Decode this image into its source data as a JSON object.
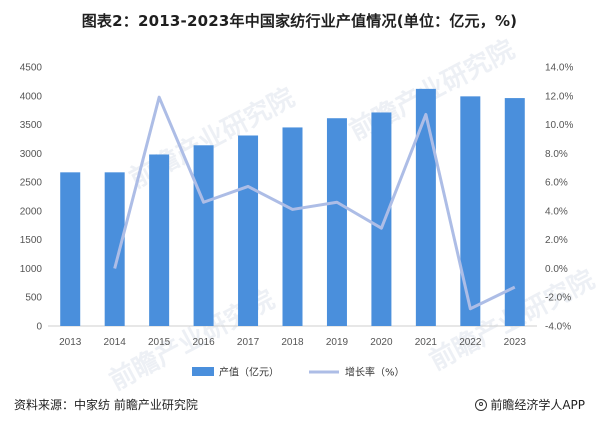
{
  "title": "图表2：2013-2023年中国家纺行业产值情况(单位：亿元，%)",
  "footer": {
    "source": "资料来源：中家纺 前瞻产业研究院",
    "brand": "前瞻经济学人APP"
  },
  "watermark": "前瞻产业研究院",
  "colors": {
    "bar": "#4a8fdc",
    "line": "#adbde6"
  },
  "chart_data": {
    "type": "bar",
    "categories": [
      "2013",
      "2014",
      "2015",
      "2016",
      "2017",
      "2018",
      "2019",
      "2020",
      "2021",
      "2022",
      "2023"
    ],
    "series": [
      {
        "name": "产值（亿元）",
        "type": "bar",
        "axis": "left",
        "values": [
          2670,
          2670,
          2980,
          3140,
          3310,
          3450,
          3610,
          3710,
          4120,
          3990,
          3960
        ]
      },
      {
        "name": "增长率（%）",
        "type": "line",
        "axis": "right",
        "values": [
          null,
          0.0,
          11.9,
          4.6,
          5.7,
          4.1,
          4.6,
          2.8,
          10.7,
          -2.8,
          -1.3
        ]
      }
    ],
    "y_left": {
      "min": 0,
      "max": 4500,
      "ticks": [
        "0",
        "500",
        "1000",
        "1500",
        "2000",
        "2500",
        "3000",
        "3500",
        "4000",
        "4500"
      ]
    },
    "y_right": {
      "min": -4,
      "max": 14,
      "ticks": [
        "-4.0%",
        "-2.0%",
        "0.0%",
        "2.0%",
        "4.0%",
        "6.0%",
        "8.0%",
        "10.0%",
        "12.0%",
        "14.0%"
      ]
    },
    "legend": [
      "产值（亿元）",
      "增长率（%）"
    ],
    "legend_position": "bottom"
  }
}
